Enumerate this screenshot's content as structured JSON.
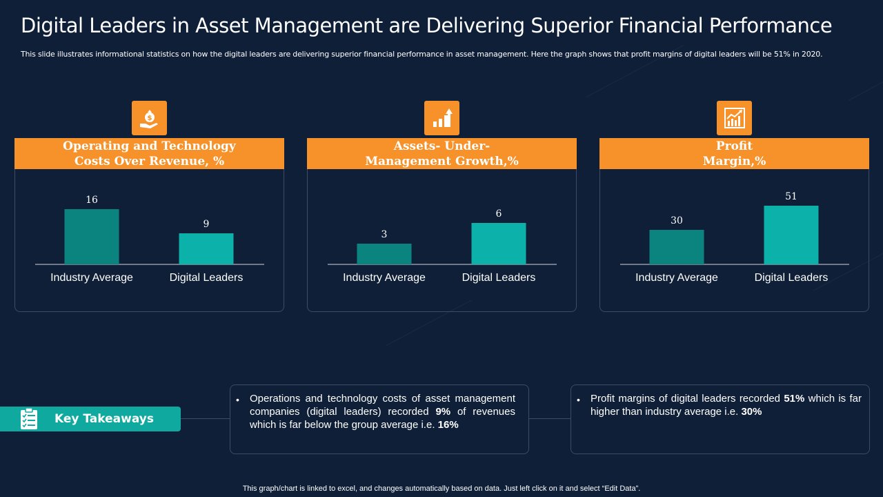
{
  "header": {
    "title": "Digital Leaders in Asset Management are Delivering Superior Financial Performance",
    "subtitle": "This slide illustrates informational statistics on how the digital leaders are delivering superior financial performance in asset management. Here the graph shows that profit margins of digital leaders will be 51% in 2020."
  },
  "colors": {
    "background": "#0f1f38",
    "accent_orange": "#f7922a",
    "bar_industry": "#0b8480",
    "bar_digital": "#0cb1a9",
    "takeaway_teal": "#0fa99f"
  },
  "panels": [
    {
      "icon": "money-bag-hand-icon",
      "header_line1": "Operating and Technology",
      "header_line2": "Costs Over Revenue, %"
    },
    {
      "icon": "bar-growth-arrow-icon",
      "header_line1": "Assets- Under-",
      "header_line2": "Management Growth,%"
    },
    {
      "icon": "line-chart-growth-icon",
      "header_line1": "Profit",
      "header_line2": "Margin,%"
    }
  ],
  "chart_data": [
    {
      "type": "bar",
      "categories": [
        "Industry Average",
        "Digital Leaders"
      ],
      "values": [
        16,
        9
      ],
      "ylim": [
        0,
        20
      ]
    },
    {
      "type": "bar",
      "categories": [
        "Industry Average",
        "Digital Leaders"
      ],
      "values": [
        3,
        6
      ],
      "ylim": [
        0,
        10
      ]
    },
    {
      "type": "bar",
      "categories": [
        "Industry Average",
        "Digital Leaders"
      ],
      "values": [
        30,
        51
      ],
      "ylim": [
        0,
        60
      ]
    }
  ],
  "takeaways": {
    "title": "Key Takeaways",
    "icon": "checklist-icon",
    "items": [
      {
        "part1": "Operations and technology costs of asset management companies (digital leaders) recorded ",
        "bold1": "9%",
        "part2": " of revenues which is far below the group average i.e. ",
        "bold2": "16%",
        "part3": ""
      },
      {
        "part1": "Profit margins of digital leaders recorded ",
        "bold1": "51%",
        "part2": " which is far higher than industry  average i.e. ",
        "bold2": "30%",
        "part3": ""
      }
    ]
  },
  "footer": {
    "note": "This graph/chart is linked to excel, and changes automatically based on data. Just left click on it and select “Edit Data”."
  }
}
